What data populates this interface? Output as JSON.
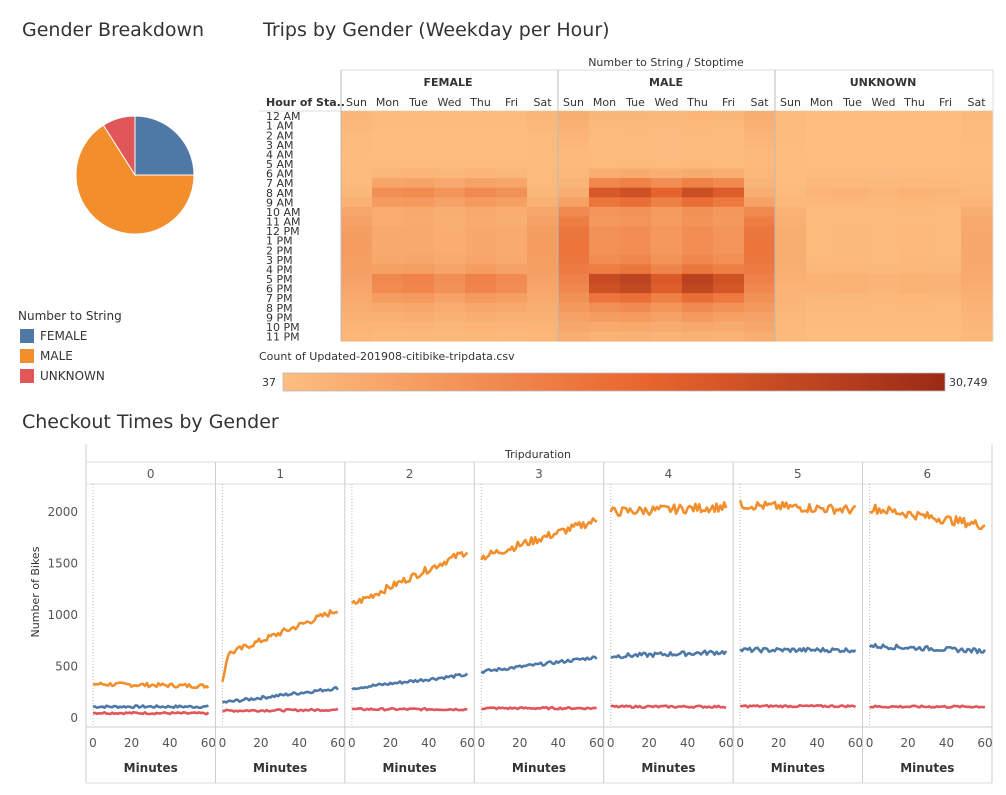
{
  "colors": {
    "female": "#4e79a7",
    "male": "#f28e2b",
    "unknown": "#e15759",
    "heat_low": "#fdbe80",
    "heat_high": "#9b2a16"
  },
  "pie": {
    "title": "Gender Breakdown",
    "legend_title": "Number to String",
    "legend_items": [
      "FEMALE",
      "MALE",
      "UNKNOWN"
    ]
  },
  "heatmap": {
    "title": "Trips by Gender (Weekday per Hour)",
    "column_header": "Number to String  /  Stoptime",
    "groups": [
      "FEMALE",
      "MALE",
      "UNKNOWN"
    ],
    "days": [
      "Sun",
      "Mon",
      "Tue",
      "Wed",
      "Thu",
      "Fri",
      "Sat"
    ],
    "row_header": "Hour of Sta..",
    "hours": [
      "12 AM",
      "1 AM",
      "2 AM",
      "3 AM",
      "4 AM",
      "5 AM",
      "6 AM",
      "7 AM",
      "8 AM",
      "9 AM",
      "10 AM",
      "11 AM",
      "12 PM",
      "1 PM",
      "2 PM",
      "3 PM",
      "4 PM",
      "5 PM",
      "6 PM",
      "7 PM",
      "8 PM",
      "9 PM",
      "10 PM",
      "11 PM"
    ],
    "color_legend_title": "Count of Updated-201908-citibike-tripdata.csv",
    "color_min_label": "37",
    "color_max_label": "30,749"
  },
  "lines": {
    "title": "Checkout Times by Gender",
    "facet_header": "Tripduration",
    "panels": [
      "0",
      "1",
      "2",
      "3",
      "4",
      "5",
      "6"
    ],
    "y_label": "Number of Bikes",
    "x_label": "Minutes",
    "y_ticks": [
      "0",
      "500",
      "1000",
      "1500",
      "2000"
    ],
    "x_ticks": [
      "0",
      "20",
      "40",
      "60"
    ]
  },
  "chart_data": [
    {
      "type": "pie",
      "title": "Gender Breakdown",
      "categories": [
        "FEMALE",
        "MALE",
        "UNKNOWN"
      ],
      "values": [
        25,
        66,
        9
      ],
      "legend_placement": "bottom-left"
    },
    {
      "type": "heatmap",
      "title": "Trips by Gender (Weekday per Hour)",
      "x_groups": [
        "FEMALE",
        "MALE",
        "UNKNOWN"
      ],
      "x": [
        "Sun",
        "Mon",
        "Tue",
        "Wed",
        "Thu",
        "Fri",
        "Sat"
      ],
      "y": [
        "12 AM",
        "1 AM",
        "2 AM",
        "3 AM",
        "4 AM",
        "5 AM",
        "6 AM",
        "7 AM",
        "8 AM",
        "9 AM",
        "10 AM",
        "11 AM",
        "12 PM",
        "1 PM",
        "2 PM",
        "3 PM",
        "4 PM",
        "5 PM",
        "6 PM",
        "7 PM",
        "8 PM",
        "9 PM",
        "10 PM",
        "11 PM"
      ],
      "hour_profile": [
        0.05,
        0.03,
        0.02,
        0.02,
        0.02,
        0.03,
        0.12,
        0.38,
        0.72,
        0.5,
        0.28,
        0.26,
        0.3,
        0.3,
        0.3,
        0.34,
        0.45,
        0.82,
        0.78,
        0.5,
        0.32,
        0.22,
        0.14,
        0.08
      ],
      "weekend_profile": [
        0.1,
        0.08,
        0.06,
        0.05,
        0.03,
        0.03,
        0.04,
        0.06,
        0.1,
        0.18,
        0.32,
        0.4,
        0.44,
        0.45,
        0.45,
        0.44,
        0.42,
        0.38,
        0.34,
        0.28,
        0.22,
        0.18,
        0.14,
        0.1
      ],
      "day_factor": [
        1.0,
        0.9,
        0.98,
        0.78,
        1.0,
        0.85,
        1.0
      ],
      "group_scale": [
        0.45,
        1.0,
        0.1
      ],
      "color_range": [
        37,
        30749
      ]
    },
    {
      "type": "line",
      "title": "Checkout Times by Gender",
      "facet": "Tripduration",
      "panels": [
        "0",
        "1",
        "2",
        "3",
        "4",
        "5",
        "6"
      ],
      "xlabel": "Minutes",
      "ylabel": "Number of Bikes",
      "xlim": [
        0,
        60
      ],
      "ylim": [
        0,
        2200
      ],
      "series": [
        {
          "name": "FEMALE",
          "start": [
            110,
            150,
            290,
            450,
            600,
            660,
            700
          ],
          "end": [
            110,
            290,
            420,
            590,
            640,
            660,
            650
          ],
          "noise": [
            12,
            15,
            15,
            15,
            22,
            22,
            22
          ]
        },
        {
          "name": "MALE",
          "start": [
            330,
            600,
            1100,
            1560,
            2000,
            2070,
            2040
          ],
          "end": [
            310,
            1050,
            1620,
            1920,
            2050,
            2020,
            1870
          ],
          "noise": [
            20,
            30,
            35,
            40,
            45,
            45,
            45
          ]
        },
        {
          "name": "UNKNOWN",
          "start": [
            50,
            70,
            85,
            95,
            110,
            115,
            110
          ],
          "end": [
            45,
            80,
            85,
            95,
            110,
            115,
            110
          ],
          "noise": [
            10,
            10,
            10,
            10,
            10,
            10,
            10
          ]
        }
      ]
    }
  ]
}
